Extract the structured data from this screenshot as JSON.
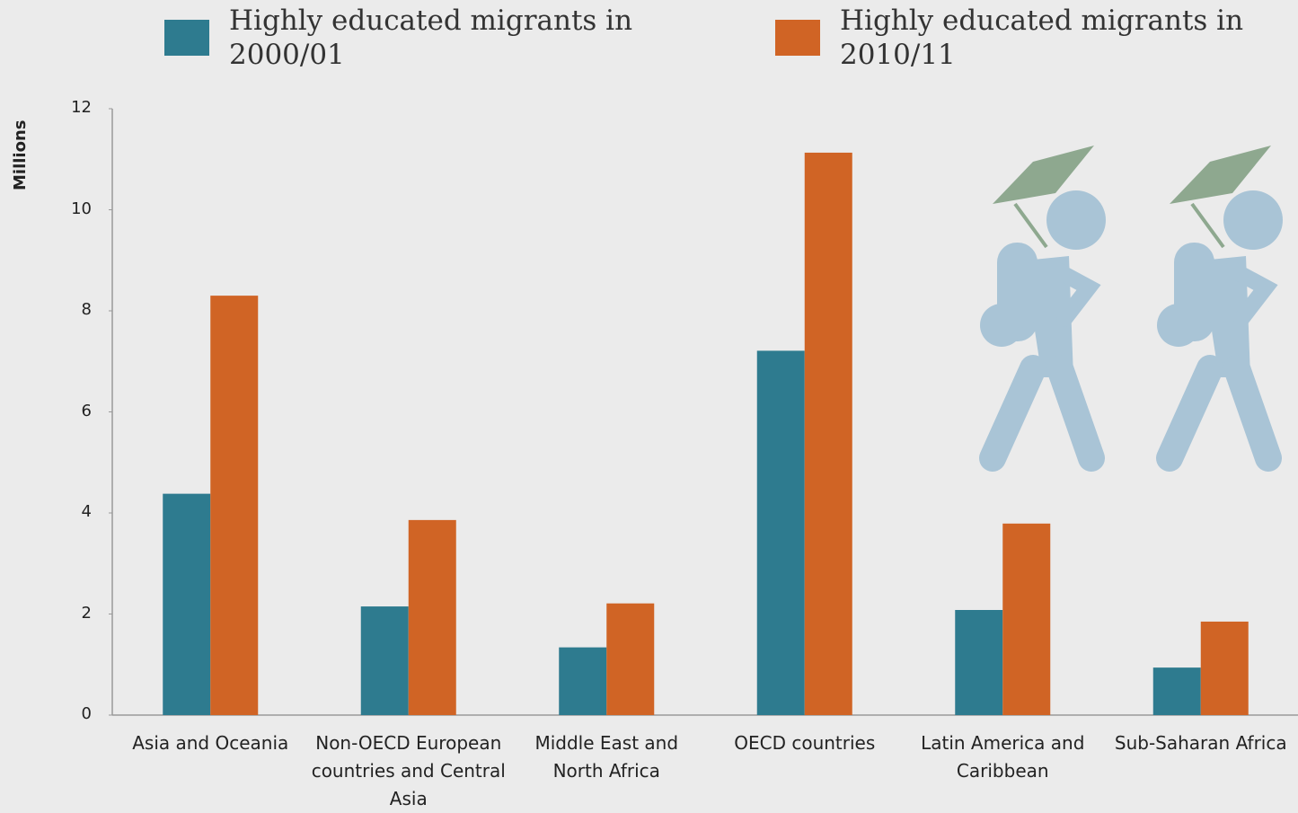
{
  "chart_data": {
    "type": "bar",
    "y_label": "Millions",
    "categories": [
      "Asia and Oceania",
      "Non-OECD European countries and Central Asia",
      "Middle East and North Africa",
      "OECD countries",
      "Latin America and Caribbean",
      "Sub-Saharan Africa"
    ],
    "series": [
      {
        "name": "Highly educated migrants in 2000/01",
        "color": "#2e7b8f",
        "values": [
          4.38,
          2.15,
          1.34,
          7.21,
          2.08,
          0.94
        ]
      },
      {
        "name": "Highly educated migrants in 2010/11",
        "color": "#d06425",
        "values": [
          8.3,
          3.86,
          2.21,
          11.13,
          3.79,
          1.85
        ]
      }
    ],
    "ylim": [
      0,
      12
    ],
    "yticks": [
      0,
      2,
      4,
      6,
      8,
      10,
      12
    ],
    "grid": false,
    "legend": "top"
  }
}
